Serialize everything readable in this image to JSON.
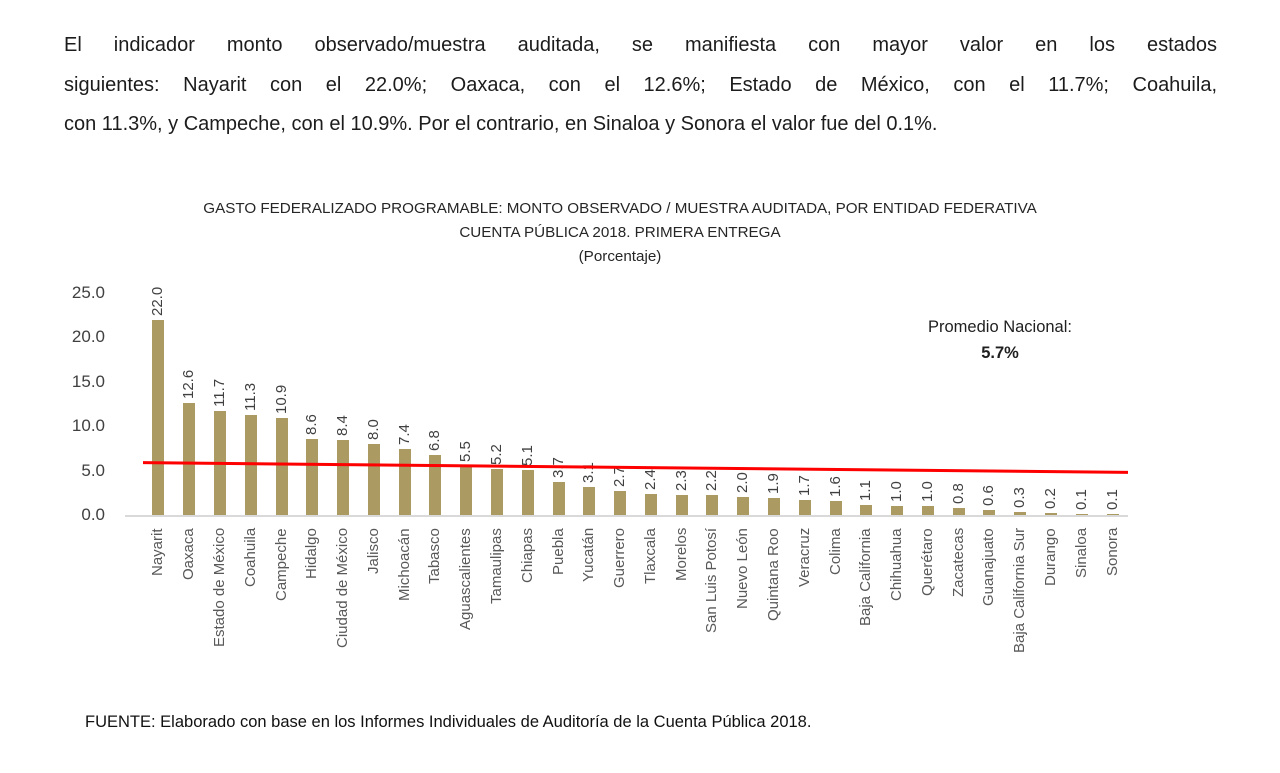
{
  "intro": {
    "lines": [
      "El indicador monto observado/muestra auditada, se manifiesta con mayor valor en los estados",
      "siguientes: Nayarit con el 22.0%; Oaxaca, con el 12.6%; Estado de México, con el 11.7%; Coahuila,",
      "con 11.3%, y Campeche, con el 10.9%. Por el contrario, en Sinaloa y Sonora el valor fue del 0.1%."
    ]
  },
  "chart": {
    "title_line1": "GASTO FEDERALIZADO PROGRAMABLE: MONTO OBSERVADO / MUESTRA AUDITADA, POR ENTIDAD FEDERATIVA",
    "title_line2": "CUENTA PÚBLICA 2018. PRIMERA ENTREGA",
    "title_line3": "(Porcentaje)",
    "promedio_label": "Promedio Nacional:",
    "promedio_value": "5.7%"
  },
  "chart_data": {
    "type": "bar",
    "title": "GASTO FEDERALIZADO PROGRAMABLE: MONTO OBSERVADO / MUESTRA AUDITADA, POR ENTIDAD FEDERATIVA",
    "subtitle": "CUENTA PÚBLICA 2018. PRIMERA ENTREGA",
    "units": "(Porcentaje)",
    "xlabel": "",
    "ylabel": "",
    "ylim": [
      0,
      25
    ],
    "yticks": [
      0,
      5,
      10,
      15,
      20,
      25
    ],
    "grid": false,
    "legend": false,
    "bar_color": "#ab9a61",
    "categories": [
      "Nayarit",
      "Oaxaca",
      "Estado de México",
      "Coahuila",
      "Campeche",
      "Hidalgo",
      "Ciudad de México",
      "Jalisco",
      "Michoacán",
      "Tabasco",
      "Aguascalientes",
      "Tamaulipas",
      "Chiapas",
      "Puebla",
      "Yucatán",
      "Guerrero",
      "Tlaxcala",
      "Morelos",
      "San Luis Potosí",
      "Nuevo León",
      "Quintana Roo",
      "Veracruz",
      "Colima",
      "Baja California",
      "Chihuahua",
      "Querétaro",
      "Zacatecas",
      "Guanajuato",
      "Baja California Sur",
      "Durango",
      "Sinaloa",
      "Sonora"
    ],
    "values": [
      22.0,
      12.6,
      11.7,
      11.3,
      10.9,
      8.6,
      8.4,
      8.0,
      7.4,
      6.8,
      5.5,
      5.2,
      5.1,
      3.7,
      3.1,
      2.7,
      2.4,
      2.3,
      2.2,
      2.0,
      1.9,
      1.7,
      1.6,
      1.1,
      1.0,
      1.0,
      0.8,
      0.6,
      0.3,
      0.2,
      0.1,
      0.1
    ],
    "average_line": {
      "label": "Promedio Nacional:",
      "display": "5.7%",
      "value": 5.7,
      "color": "#ff0000",
      "start_value": 5.9,
      "end_value": 4.8
    }
  },
  "footer": {
    "source": "FUENTE: Elaborado con base en los Informes Individuales de Auditoría de la Cuenta Pública 2018."
  }
}
